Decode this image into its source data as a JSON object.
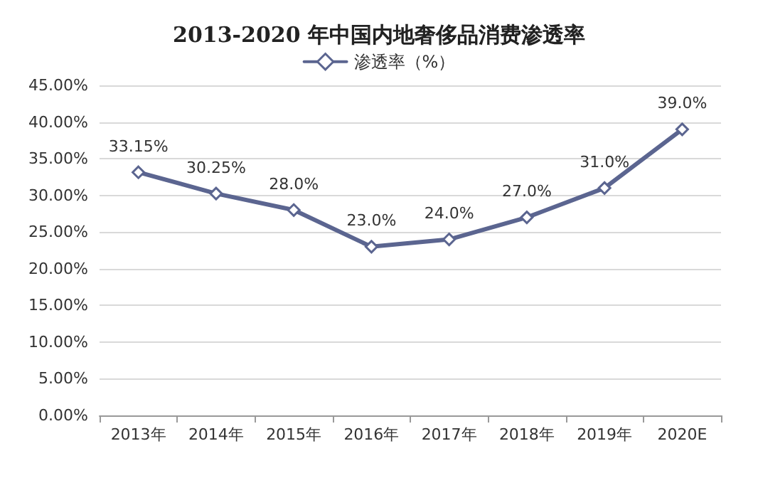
{
  "chart_data": {
    "type": "line",
    "title": "2013-2020 年中国内地奢侈品消费渗透率",
    "categories": [
      "2013年",
      "2014年",
      "2015年",
      "2016年",
      "2017年",
      "2018年",
      "2019年",
      "2020E"
    ],
    "series": [
      {
        "name": "渗透率（%）",
        "color": "#5b6590",
        "values": [
          33.15,
          30.25,
          28.0,
          23.0,
          24.0,
          27.0,
          31.0,
          39.0
        ],
        "value_labels": [
          "33.15%",
          "30.25%",
          "28.0%",
          "23.0%",
          "24.0%",
          "27.0%",
          "31.0%",
          "39.0%"
        ]
      }
    ],
    "ylim": [
      0,
      45
    ],
    "yticks": [
      {
        "value": 0,
        "label": "0.00%"
      },
      {
        "value": 5,
        "label": "5.00%"
      },
      {
        "value": 10,
        "label": "10.00%"
      },
      {
        "value": 15,
        "label": "15.00%"
      },
      {
        "value": 20,
        "label": "20.00%"
      },
      {
        "value": 25,
        "label": "25.00%"
      },
      {
        "value": 30,
        "label": "30.00%"
      },
      {
        "value": 35,
        "label": "35.00%"
      },
      {
        "value": 40,
        "label": "40.00%"
      },
      {
        "value": 45,
        "label": "45.00%"
      }
    ],
    "grid": "y",
    "legend": "top",
    "marker": "diamond",
    "line_style": "solid"
  }
}
